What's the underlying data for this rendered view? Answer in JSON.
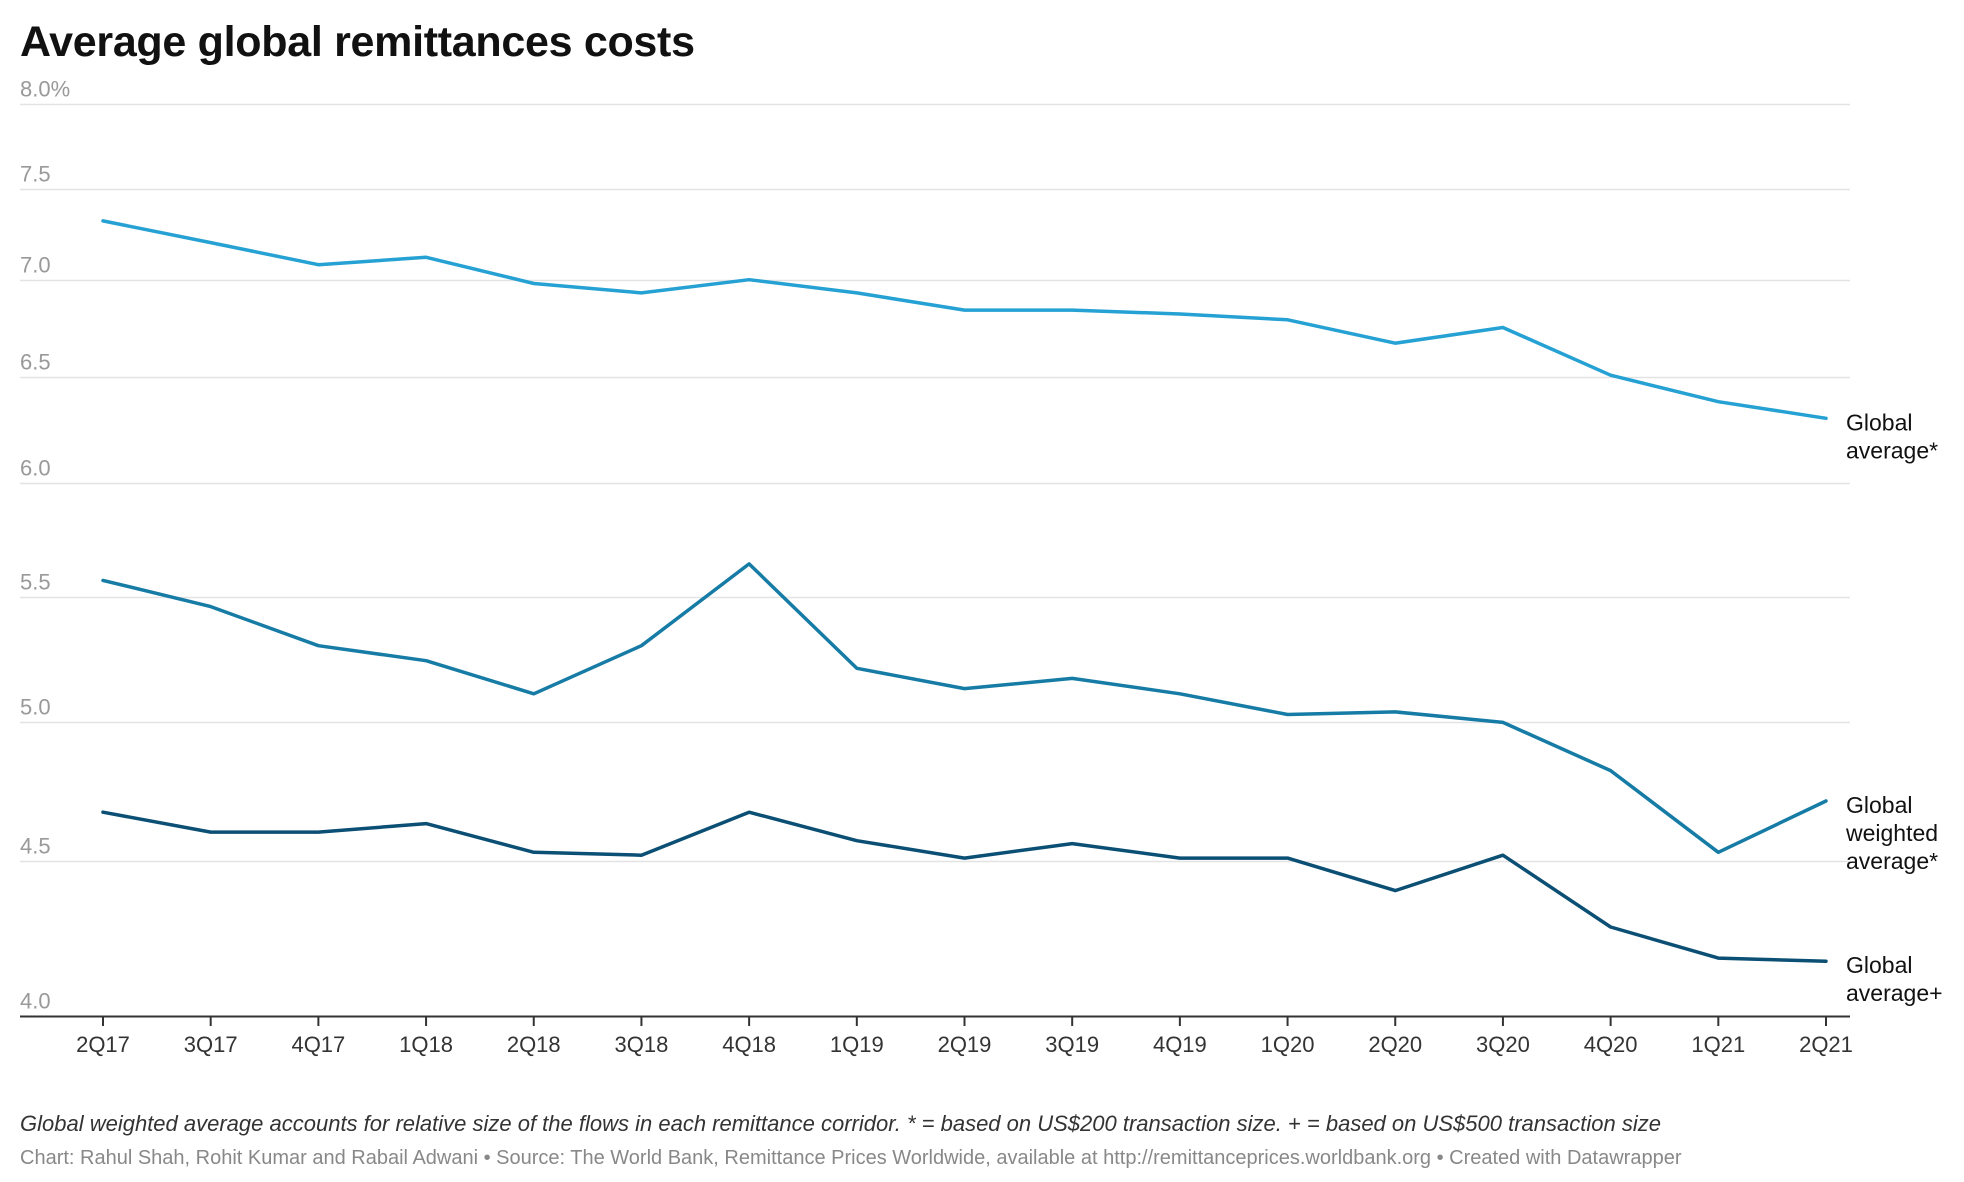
{
  "chart_data": {
    "type": "line",
    "title": "Average global remittances costs",
    "footnote": "Global weighted average accounts for relative size of the flows in each remittance corridor. * = based on US$200 transaction size. + = based on US$500 transaction size",
    "credits": "Chart: Rahul Shah, Rohit Kumar and Rabail Adwani • Source: The World Bank, Remittance Prices Worldwide, available at http://remittanceprices.worldbank.org • Created with Datawrapper",
    "x": [
      "2Q17",
      "3Q17",
      "4Q17",
      "1Q18",
      "2Q18",
      "3Q18",
      "4Q18",
      "1Q19",
      "2Q19",
      "3Q19",
      "4Q19",
      "1Q20",
      "2Q20",
      "3Q20",
      "4Q20",
      "1Q21",
      "2Q21"
    ],
    "y_ticks": [
      {
        "value": 8.0,
        "label": "8.0%"
      },
      {
        "value": 7.5,
        "label": "7.5"
      },
      {
        "value": 7.0,
        "label": "7.0"
      },
      {
        "value": 6.5,
        "label": "6.5"
      },
      {
        "value": 6.0,
        "label": "6.0"
      },
      {
        "value": 5.5,
        "label": "5.5"
      },
      {
        "value": 5.0,
        "label": "5.0"
      },
      {
        "value": 4.5,
        "label": "4.5"
      },
      {
        "value": 4.0,
        "label": "4.0"
      }
    ],
    "ylim": [
      4.0,
      8.0
    ],
    "y_scale": "log",
    "grid": true,
    "series": [
      {
        "label_lines": [
          "Global",
          "average*"
        ],
        "color": "#26a1d3",
        "values": [
          7.32,
          7.2,
          7.08,
          7.12,
          6.98,
          6.93,
          7.0,
          6.93,
          6.84,
          6.84,
          6.82,
          6.79,
          6.67,
          6.75,
          6.51,
          6.38,
          6.3
        ]
      },
      {
        "label_lines": [
          "Global",
          "weighted",
          "average*"
        ],
        "color": "#167ca6",
        "values": [
          5.57,
          5.46,
          5.3,
          5.24,
          5.11,
          5.3,
          5.64,
          5.21,
          5.13,
          5.17,
          5.11,
          5.03,
          5.04,
          5.0,
          4.82,
          4.53,
          4.71
        ]
      },
      {
        "label_lines": [
          "Global",
          "average+"
        ],
        "color": "#0b4f74",
        "values": [
          4.67,
          4.6,
          4.6,
          4.63,
          4.53,
          4.52,
          4.67,
          4.57,
          4.51,
          4.56,
          4.51,
          4.51,
          4.4,
          4.52,
          4.28,
          4.18,
          4.17
        ]
      }
    ]
  }
}
